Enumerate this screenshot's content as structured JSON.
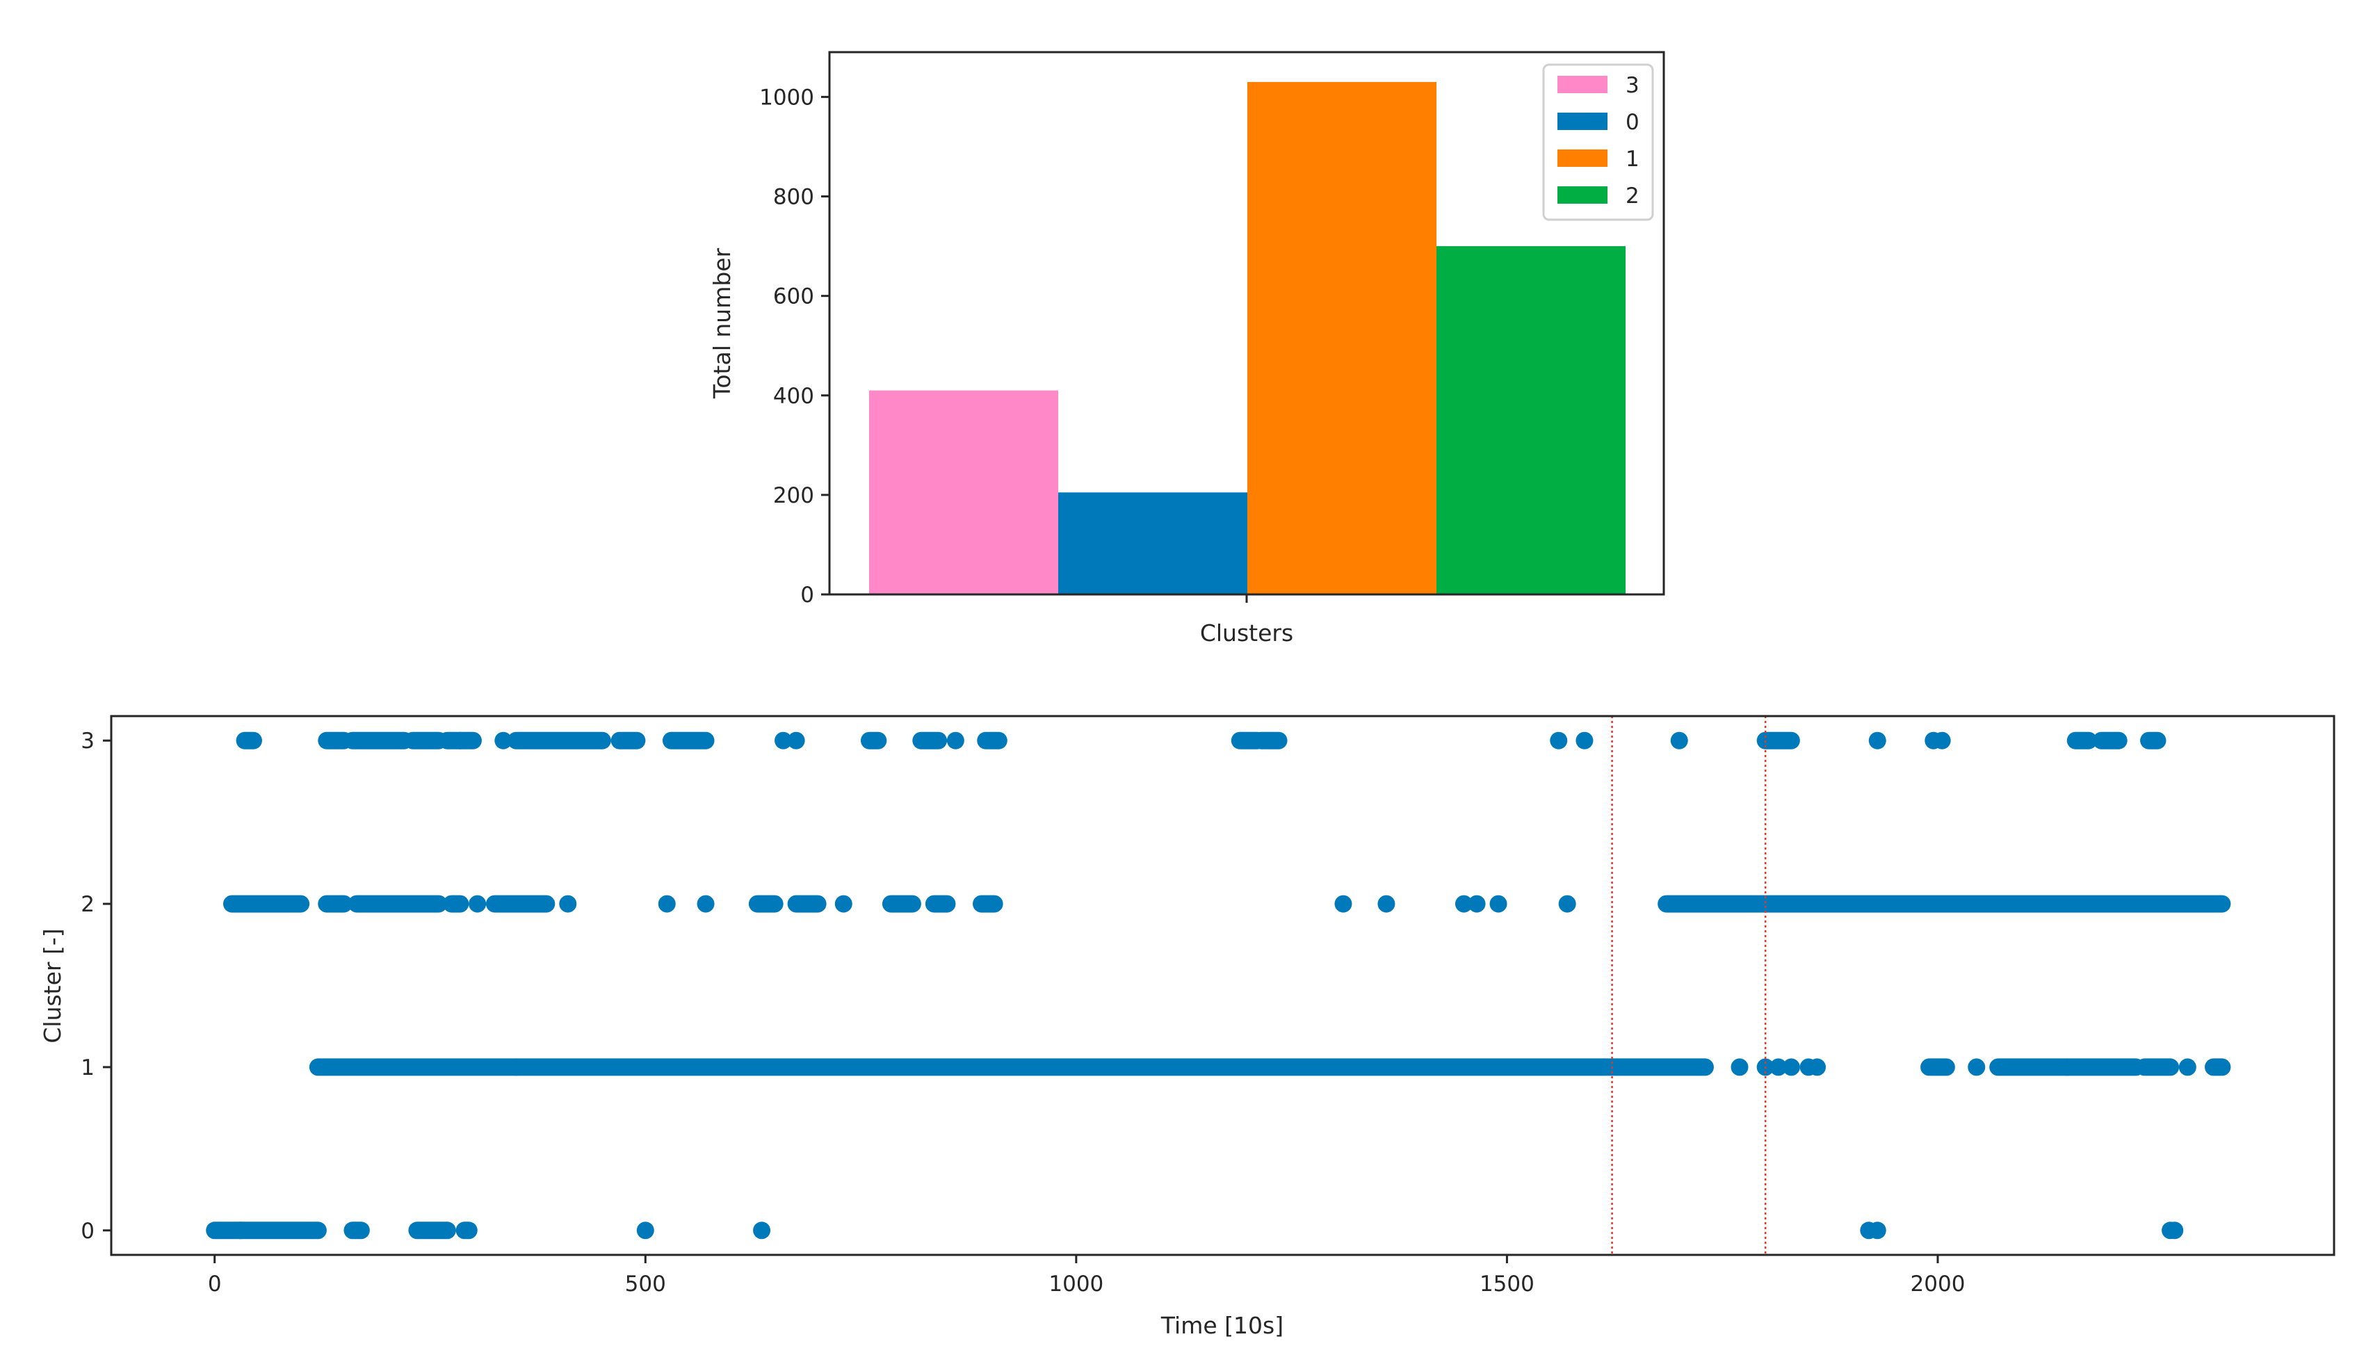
{
  "colors": {
    "series": {
      "3": "#ff88c8",
      "0": "#0079bb",
      "1": "#ff7f00",
      "2": "#00ae43"
    },
    "scatter": "#0079bb",
    "vline": "#e8352a",
    "axis": "#262626"
  },
  "chart_data": [
    {
      "type": "bar",
      "title": "",
      "xlabel": "Clusters",
      "ylabel": "Total number",
      "ylim": [
        0,
        1090
      ],
      "yticks": [
        0,
        200,
        400,
        600,
        800,
        1000
      ],
      "categories": [
        "3",
        "0",
        "1",
        "2"
      ],
      "values": [
        410,
        205,
        1030,
        700
      ],
      "legend": {
        "position": "top-right",
        "entries": [
          "3",
          "0",
          "1",
          "2"
        ]
      }
    },
    {
      "type": "scatter",
      "title": "",
      "xlabel": "Time [10s]",
      "ylabel": "Cluster [-]",
      "xlim": [
        -120,
        2460
      ],
      "ylim": [
        -0.15,
        3.15
      ],
      "xticks": [
        0,
        500,
        1000,
        1500,
        2000
      ],
      "yticks": [
        0,
        1,
        2,
        3
      ],
      "vlines": [
        1622,
        1800
      ],
      "series": [
        {
          "cluster": 0,
          "ranges": [
            [
              0,
              30
            ],
            [
              30,
              120
            ],
            [
              160,
              170
            ],
            [
              235,
              270
            ],
            [
              290,
              295
            ]
          ],
          "points": [
            500,
            635,
            1920,
            1930,
            2270,
            2275
          ]
        },
        {
          "cluster": 1,
          "ranges": [
            [
              120,
              350
            ],
            [
              350,
              1730
            ],
            [
              1990,
              2010
            ],
            [
              2070,
              2150
            ],
            [
              2150,
              2230
            ],
            [
              2240,
              2270
            ],
            [
              2320,
              2330
            ]
          ],
          "points": [
            1770,
            1800,
            1815,
            1830,
            1850,
            1860,
            2045,
            2290
          ]
        },
        {
          "cluster": 2,
          "ranges": [
            [
              20,
              100
            ],
            [
              130,
              150
            ],
            [
              165,
              260
            ],
            [
              275,
              285
            ],
            [
              325,
              385
            ],
            [
              630,
              650
            ],
            [
              675,
              700
            ],
            [
              785,
              810
            ],
            [
              835,
              850
            ],
            [
              890,
              905
            ],
            [
              1685,
              2330
            ]
          ],
          "points": [
            305,
            410,
            525,
            570,
            730,
            1310,
            1360,
            1450,
            1465,
            1490,
            1570
          ]
        },
        {
          "cluster": 3,
          "ranges": [
            [
              35,
              45
            ],
            [
              130,
              150
            ],
            [
              160,
              220
            ],
            [
              230,
              260
            ],
            [
              270,
              300
            ],
            [
              350,
              450
            ],
            [
              470,
              490
            ],
            [
              530,
              570
            ],
            [
              760,
              770
            ],
            [
              820,
              840
            ],
            [
              895,
              910
            ],
            [
              1190,
              1210
            ],
            [
              1215,
              1235
            ],
            [
              1800,
              1830
            ],
            [
              2160,
              2175
            ],
            [
              2190,
              2210
            ],
            [
              2245,
              2255
            ]
          ],
          "points": [
            285,
            335,
            660,
            675,
            860,
            1560,
            1590,
            1700,
            1930,
            1995,
            2005
          ]
        }
      ]
    }
  ]
}
